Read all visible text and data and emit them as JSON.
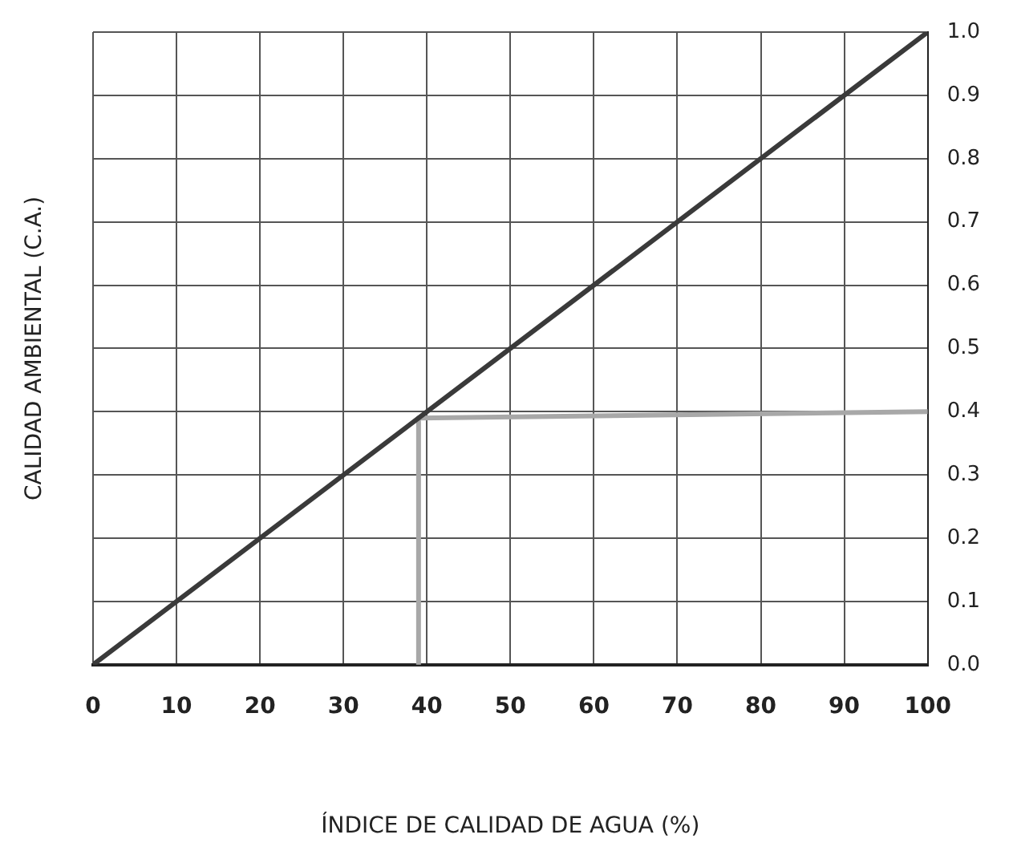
{
  "chart_data": {
    "type": "line",
    "xlabel": "ÍNDICE DE CALIDAD DE AGUA (%)",
    "ylabel": "CALIDAD AMBIENTAL (C.A.)",
    "xlim": [
      0,
      100
    ],
    "xticks": [
      0,
      10,
      20,
      30,
      40,
      50,
      60,
      70,
      80,
      90,
      100
    ],
    "ylim": [
      0,
      1
    ],
    "yticks": [
      {
        "value": 0,
        "label": "0.0"
      },
      0.1,
      0.2,
      0.3,
      0.4,
      0.5,
      0.6,
      0.7,
      0.8,
      0.9,
      {
        "value": 1,
        "label": "1.0"
      }
    ],
    "grid": true,
    "legend": false,
    "marker": "none",
    "line_style": "solid",
    "series": [
      {
        "color": "#3a3a3a",
        "x": [
          0,
          100
        ],
        "values": [
          0,
          1
        ]
      },
      {
        "color": "#a8a8a8",
        "x": [
          39,
          39,
          100
        ],
        "values": [
          0,
          0.39,
          0.4
        ]
      }
    ]
  }
}
